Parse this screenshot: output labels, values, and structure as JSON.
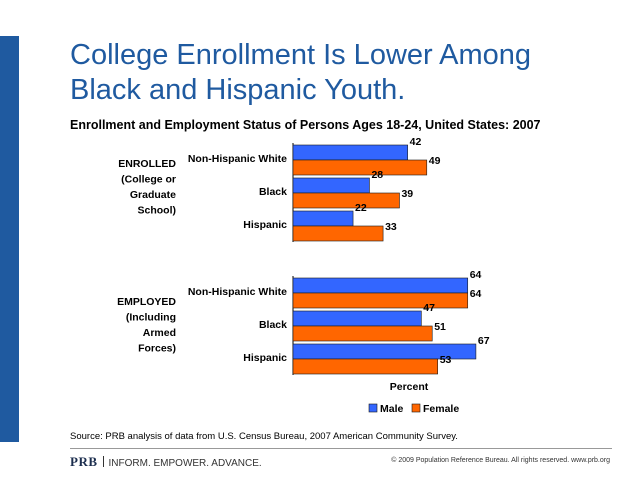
{
  "slide": {
    "title_line1": "College Enrollment Is Lower Among",
    "title_line2": "Black and Hispanic Youth.",
    "source": "Source: PRB analysis of data from U.S. Census Bureau, 2007 American Community Survey.",
    "brand_name": "PRB",
    "brand_tagline": "INFORM. EMPOWER. ADVANCE.",
    "copyright": "© 2009 Population Reference Bureau. All rights reserved. www.prb.org"
  },
  "colors": {
    "title_blue": "#1f5aa0",
    "male": "#3366ff",
    "female": "#ff6600"
  },
  "chart_data": {
    "type": "bar",
    "orientation": "horizontal",
    "title": "Enrollment and Employment Status of Persons Ages 18-24, United States: 2007",
    "xlabel": "Percent",
    "xlim": [
      0,
      70
    ],
    "groups": [
      {
        "label_lines": [
          "ENROLLED",
          "(College or",
          "Graduate",
          "School)"
        ],
        "categories": [
          "Non-Hispanic White",
          "Black",
          "Hispanic"
        ],
        "series": [
          {
            "name": "Male",
            "values": [
              42,
              28,
              22
            ]
          },
          {
            "name": "Female",
            "values": [
              49,
              39,
              33
            ]
          }
        ]
      },
      {
        "label_lines": [
          "EMPLOYED",
          "(Including",
          "Armed",
          "Forces)"
        ],
        "categories": [
          "Non-Hispanic White",
          "Black",
          "Hispanic"
        ],
        "series": [
          {
            "name": "Male",
            "values": [
              64,
              47,
              67
            ]
          },
          {
            "name": "Female",
            "values": [
              64,
              51,
              53
            ]
          }
        ]
      }
    ],
    "legend": [
      "Male",
      "Female"
    ]
  }
}
